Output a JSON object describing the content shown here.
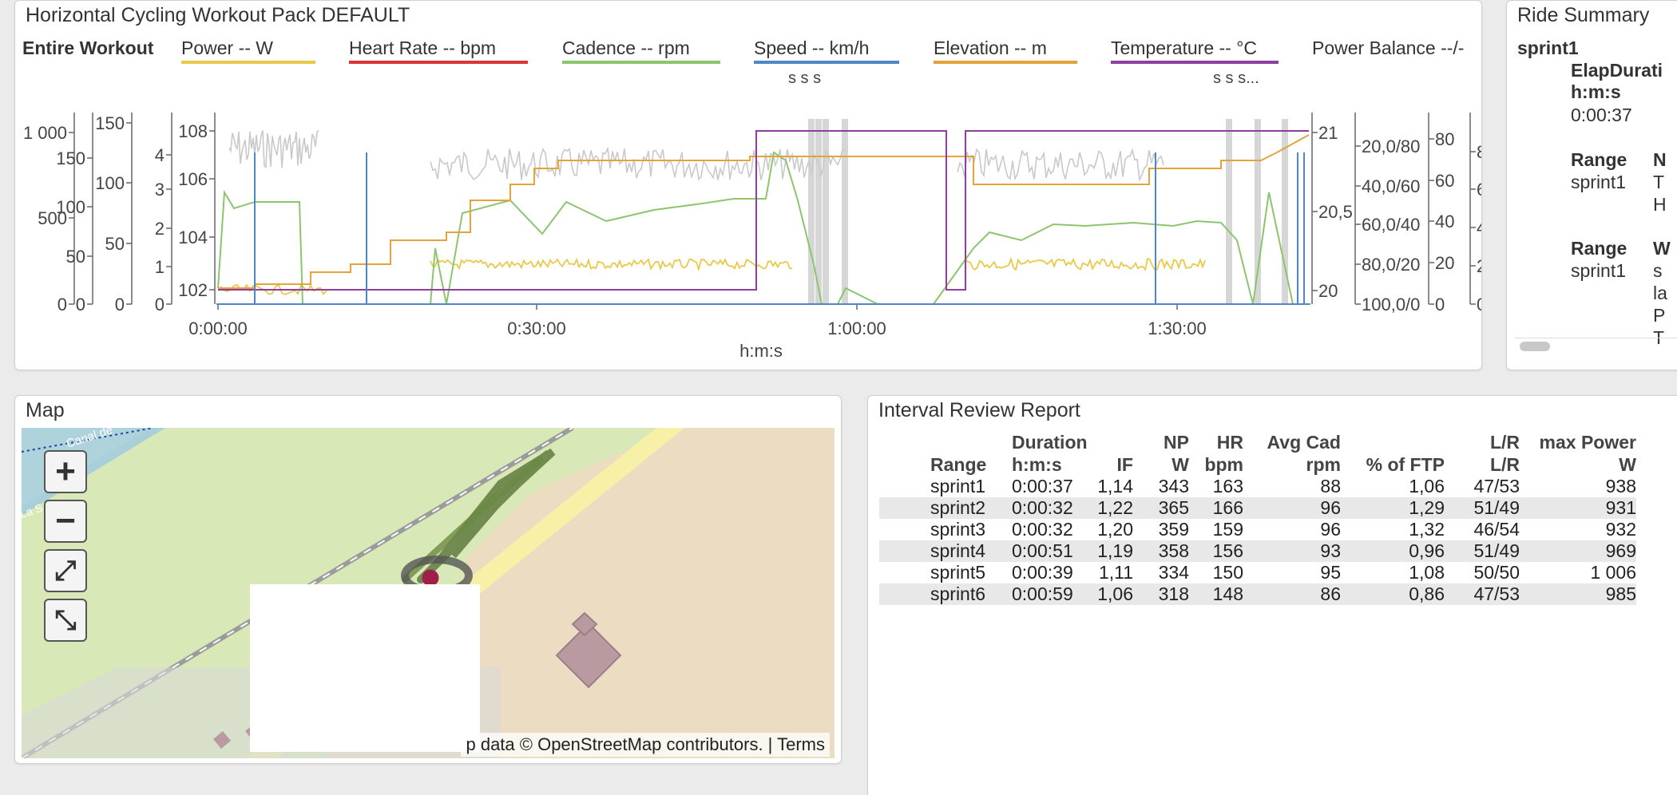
{
  "workout": {
    "title": "Horizontal Cycling Workout Pack DEFAULT",
    "scope_label": "Entire Workout",
    "legend": [
      {
        "label": "Power  -- W",
        "color": "#e9c94a"
      },
      {
        "label": "Heart Rate  -- bpm",
        "color": "#d9343a"
      },
      {
        "label": "Cadence  -- rpm",
        "color": "#8cc56d"
      },
      {
        "label": "Speed  -- km/h",
        "color": "#4f86c6"
      },
      {
        "label": "Elevation  -- m",
        "color": "#e3a43b"
      },
      {
        "label": "Temperature  -- °C",
        "color": "#8e3e9e"
      },
      {
        "label": "Power Balance  --/-",
        "color": ""
      }
    ],
    "markers_left": "s  s   s",
    "markers_right": "s    s    s...",
    "x_axis_label": "h:m:s",
    "x_ticks": [
      "0:00:00",
      "0:30:00",
      "1:00:00",
      "1:30:00"
    ],
    "left_axes": [
      {
        "ticks": [
          "1 000",
          "500",
          "0"
        ]
      },
      {
        "ticks": [
          "150",
          "100",
          "50",
          "0"
        ]
      },
      {
        "ticks": [
          "150",
          "100",
          "50",
          "0"
        ]
      },
      {
        "ticks": [
          "4",
          "3",
          "2",
          "1",
          "0"
        ]
      },
      {
        "ticks": [
          "108",
          "106",
          "104",
          "102"
        ]
      }
    ],
    "right_axes": [
      {
        "ticks": [
          "21",
          "20,5",
          "20"
        ]
      },
      {
        "ticks": [
          "20,0/80",
          "40,0/60",
          "60,0/40",
          "80,0/20",
          "100,0/0"
        ]
      },
      {
        "ticks": [
          "80",
          "60",
          "40",
          "20",
          "0"
        ]
      },
      {
        "ticks": [
          "8",
          "6",
          "4",
          "2",
          "0"
        ]
      }
    ]
  },
  "chart_data": {
    "type": "line",
    "x_label": "h:m:s",
    "x_range": [
      "0:00:00",
      "1:42:00"
    ],
    "series": [
      {
        "name": "Power",
        "unit": "W",
        "color": "#e9c94a",
        "approx_level": 280
      },
      {
        "name": "Heart Rate",
        "unit": "bpm",
        "color": "#d9343a"
      },
      {
        "name": "Cadence",
        "unit": "rpm",
        "color": "#8cc56d",
        "approx_level": 80
      },
      {
        "name": "Speed",
        "unit": "km/h",
        "color": "#4f86c6"
      },
      {
        "name": "Elevation",
        "unit": "m",
        "color": "#e3a43b",
        "range": [
          102,
          108
        ]
      },
      {
        "name": "Temperature",
        "unit": "°C",
        "color": "#8e3e9e",
        "range": [
          20,
          21
        ]
      }
    ]
  },
  "summary": {
    "title": "Ride Summary",
    "interval": "sprint1",
    "elapsed_label": "ElapDurati",
    "elapsed_unit": "h:m:s",
    "elapsed_value": "0:00:37",
    "range_label_1": "Range",
    "col_n": "N",
    "row_1": "sprint1",
    "col_t": "T",
    "col_h": "H",
    "range_label_2": "Range",
    "col_w": "W",
    "row_2": "sprint1",
    "col_s": "s",
    "col_l": "la",
    "col_p": "P",
    "col_tt": "T"
  },
  "map": {
    "title": "Map",
    "zoom_in": "+",
    "zoom_out": "−",
    "fit_label": "⤢",
    "extent_label": "⤡",
    "canal_label": "Canal de",
    "river_label": "La S",
    "attribution": "p data © OpenStreetMap contributors. |   Terms"
  },
  "report": {
    "title": "Interval Review Report",
    "headers": [
      [
        "Range",
        ""
      ],
      [
        "Duration",
        "h:m:s"
      ],
      [
        "IF",
        ""
      ],
      [
        "NP",
        "W"
      ],
      [
        "HR",
        "bpm"
      ],
      [
        "Avg Cad",
        "rpm"
      ],
      [
        "% of FTP",
        ""
      ],
      [
        "L/R",
        "L/R"
      ],
      [
        "max Power",
        "W"
      ]
    ],
    "rows": [
      [
        "sprint1",
        "0:00:37",
        "1,14",
        "343",
        "163",
        "88",
        "1,06",
        "47/53",
        "938"
      ],
      [
        "sprint2",
        "0:00:32",
        "1,22",
        "365",
        "166",
        "96",
        "1,29",
        "51/49",
        "931"
      ],
      [
        "sprint3",
        "0:00:32",
        "1,20",
        "359",
        "159",
        "96",
        "1,32",
        "46/54",
        "932"
      ],
      [
        "sprint4",
        "0:00:51",
        "1,19",
        "358",
        "156",
        "93",
        "0,96",
        "51/49",
        "969"
      ],
      [
        "sprint5",
        "0:00:39",
        "1,11",
        "334",
        "150",
        "95",
        "1,08",
        "50/50",
        "1 006"
      ],
      [
        "sprint6",
        "0:00:59",
        "1,06",
        "318",
        "148",
        "86",
        "0,86",
        "47/53",
        "985"
      ]
    ]
  }
}
